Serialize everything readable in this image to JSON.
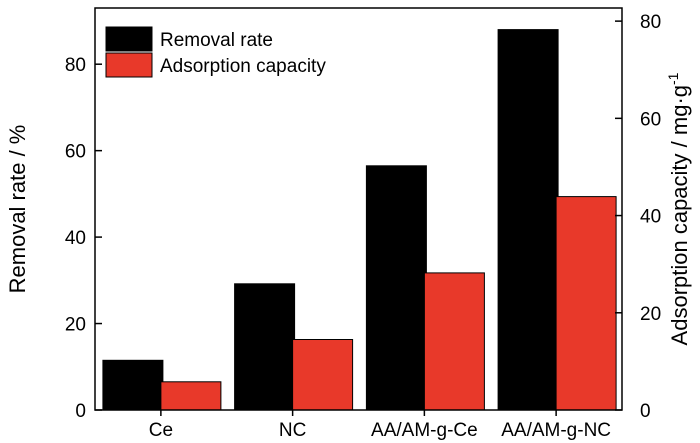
{
  "chart_data": {
    "type": "bar",
    "categories": [
      "Ce",
      "NC",
      "AA/AM-g-Ce",
      "AA/AM-g-NC"
    ],
    "series": [
      {
        "name": "Removal rate",
        "axis": "left",
        "color": "#000000",
        "values": [
          11.5,
          29.2,
          56.5,
          88.0
        ]
      },
      {
        "name": "Adsorption capacity",
        "axis": "right",
        "color": "#e8392a",
        "values": [
          5.8,
          14.5,
          28.2,
          43.9
        ]
      }
    ],
    "ylabel_left": "Removal rate / %",
    "ylabel_right": "Adsorption capacity / mg·g",
    "ylabel_right_sup": "-1",
    "ylim_left": [
      0,
      93
    ],
    "ylim_right": [
      0,
      82.7
    ],
    "yticks_left": [
      "0",
      "20",
      "40",
      "60",
      "80"
    ],
    "yticks_right": [
      "0",
      "20",
      "40",
      "60",
      "80"
    ],
    "legend_position": "top-left",
    "grid": false
  }
}
